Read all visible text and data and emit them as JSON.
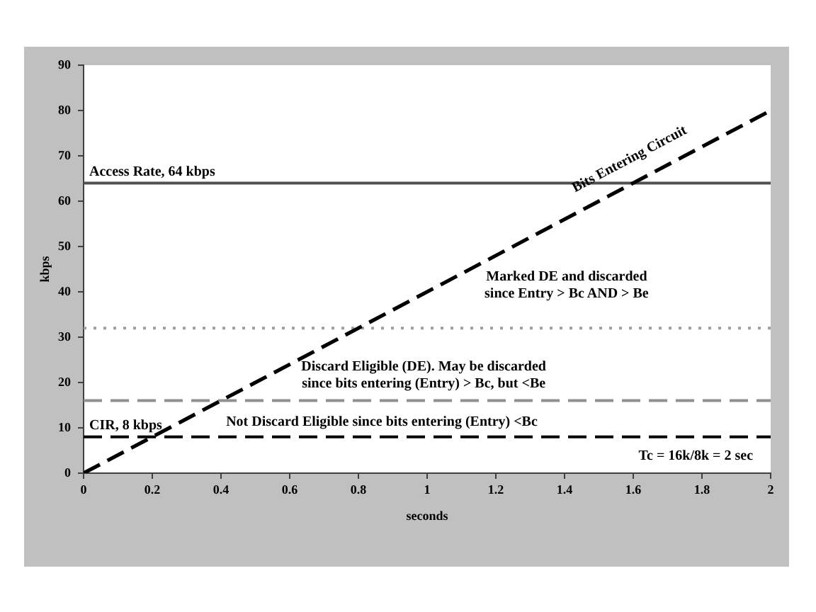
{
  "chart_data": {
    "type": "line",
    "xlabel": "seconds",
    "ylabel": "kbps",
    "x": [
      0,
      2
    ],
    "series": [
      {
        "name": "Bits Entering Circuit",
        "color": "#000000",
        "values": [
          0,
          80
        ]
      }
    ],
    "xlim": [
      0,
      2
    ],
    "xticks": [
      0,
      0.2,
      0.4,
      0.6,
      0.8,
      1,
      1.2,
      1.4,
      1.6,
      1.8,
      2
    ],
    "ylim": [
      0,
      90
    ],
    "yticks": [
      0,
      10,
      20,
      30,
      40,
      50,
      60,
      70,
      80,
      90
    ],
    "marker": "none",
    "line_style": "dashed",
    "ref_lines": [
      {
        "axis": "y",
        "value": 64,
        "label": "Access Rate, 64 kbps",
        "color": "#505050",
        "line_style": "solid"
      },
      {
        "axis": "y",
        "value": 32,
        "color": "#a0a0a0",
        "line_style": "dotted"
      },
      {
        "axis": "y",
        "value": 16,
        "color": "#909090",
        "line_style": "dashed"
      },
      {
        "axis": "y",
        "value": 8,
        "label": "CIR, 8 kbps",
        "color": "#000000",
        "line_style": "dashed"
      }
    ],
    "annotations": [
      "Marked DE and discarded\nsince Entry > Bc AND > Be",
      "Discard Eligible (DE). May be discarded\nsince bits entering (Entry) > Bc, but <Be",
      "Not Discard Eligible since bits entering (Entry) <Bc",
      "Tc = 16k/8k = 2 sec"
    ]
  }
}
